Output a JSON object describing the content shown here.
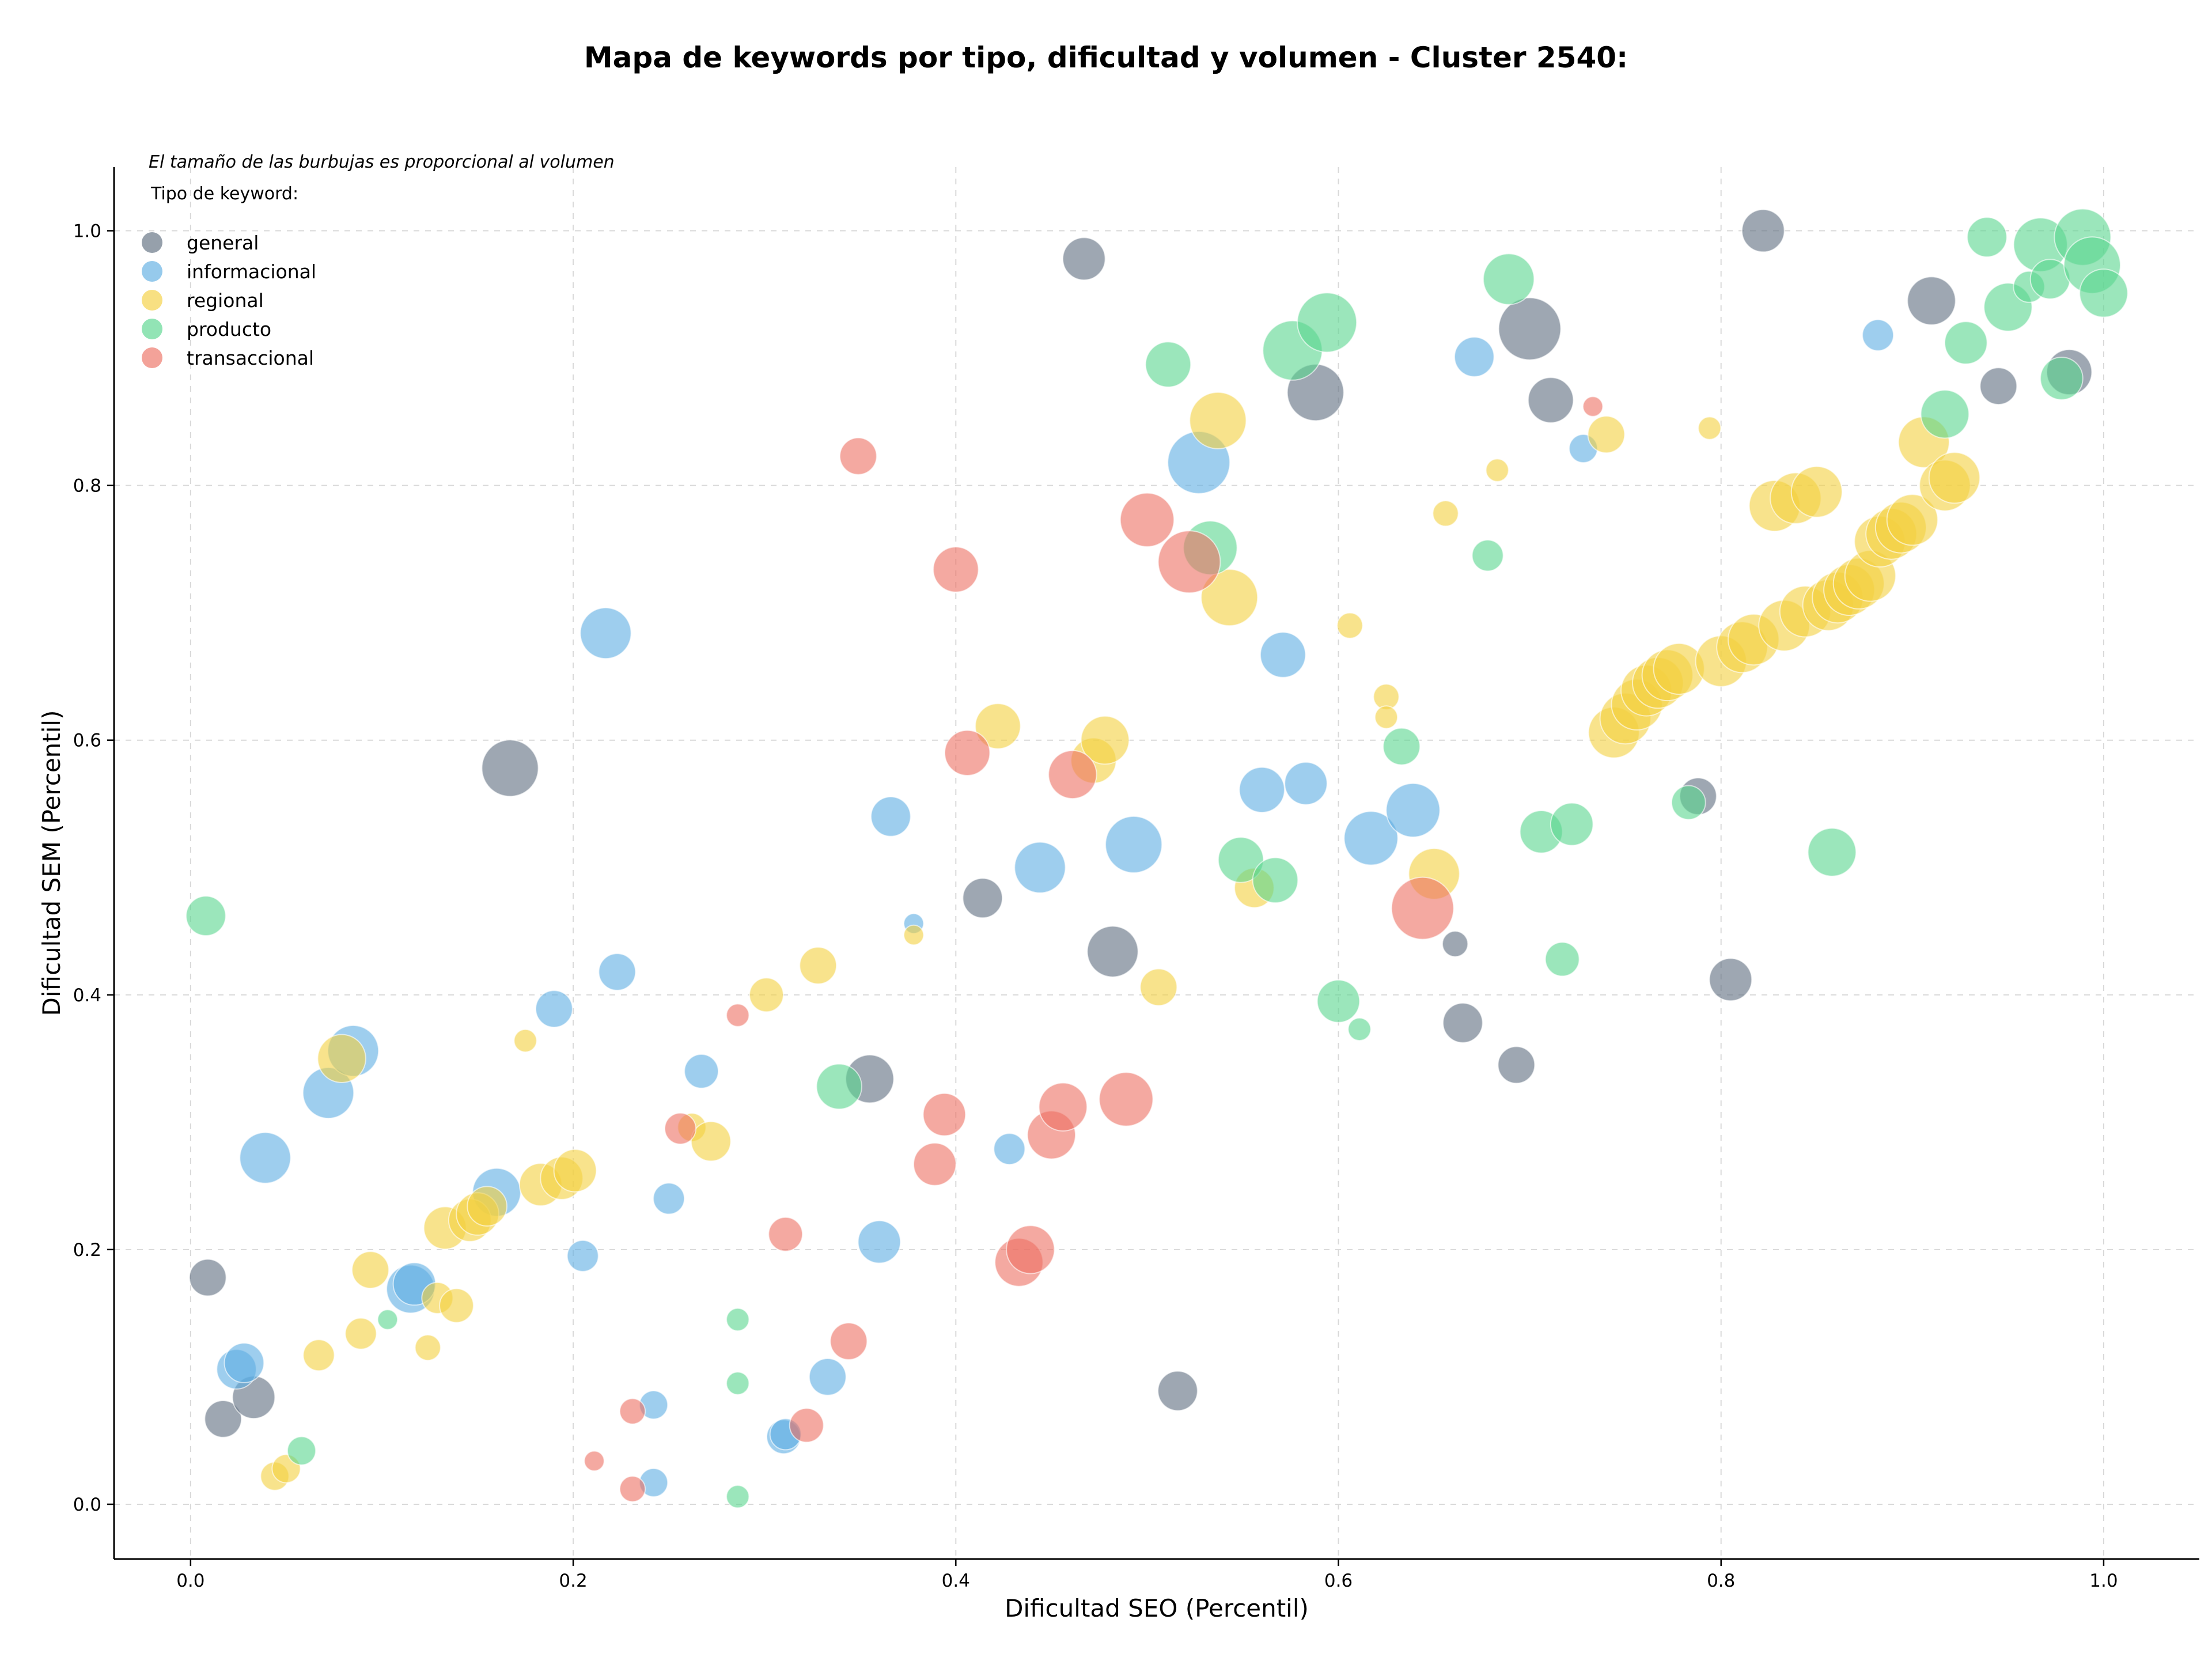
{
  "chart_data": {
    "type": "scatter",
    "title": "Mapa de keywords por tipo, dificultad y volumen - Cluster 2540:",
    "xlabel": "Dificultad SEO (Percentil)",
    "ylabel": "Dificultad SEM (Percentil)",
    "xlim": [
      -0.04,
      1.05
    ],
    "ylim": [
      -0.043,
      1.05
    ],
    "xticks": [
      "0.0",
      "0.2",
      "0.4",
      "0.6",
      "0.8",
      "1.0"
    ],
    "yticks": [
      "0.0",
      "0.2",
      "0.4",
      "0.6",
      "0.8",
      "1.0"
    ],
    "grid": true,
    "note": "El tamaño de las burbujas es proporcional al volumen",
    "legend": {
      "title": "Tipo de keyword:",
      "placement": "top-left"
    },
    "series": [
      {
        "name": "general",
        "color": "#5d6d7e",
        "points": [
          [
            0.009,
            0.178,
            13
          ],
          [
            0.017,
            0.067,
            13
          ],
          [
            0.033,
            0.084,
            15
          ],
          [
            0.167,
            0.578,
            20
          ],
          [
            0.355,
            0.334,
            17
          ],
          [
            0.414,
            0.476,
            14
          ],
          [
            0.467,
            0.978,
            15
          ],
          [
            0.482,
            0.434,
            18
          ],
          [
            0.516,
            0.089,
            14
          ],
          [
            0.588,
            0.873,
            20
          ],
          [
            0.661,
            0.44,
            9
          ],
          [
            0.665,
            0.378,
            14
          ],
          [
            0.693,
            0.345,
            13
          ],
          [
            0.7,
            0.923,
            22
          ],
          [
            0.711,
            0.867,
            16
          ],
          [
            0.788,
            0.556,
            13
          ],
          [
            0.805,
            0.412,
            15
          ],
          [
            0.822,
            1.0,
            15
          ],
          [
            0.91,
            0.945,
            17
          ],
          [
            0.945,
            0.878,
            13
          ],
          [
            0.982,
            0.889,
            16
          ]
        ]
      },
      {
        "name": "informacional",
        "color": "#5dade2",
        "points": [
          [
            0.024,
            0.106,
            14
          ],
          [
            0.028,
            0.111,
            14
          ],
          [
            0.039,
            0.272,
            18
          ],
          [
            0.072,
            0.323,
            18
          ],
          [
            0.085,
            0.356,
            18
          ],
          [
            0.115,
            0.169,
            17
          ],
          [
            0.117,
            0.173,
            15
          ],
          [
            0.16,
            0.245,
            17
          ],
          [
            0.19,
            0.389,
            13
          ],
          [
            0.205,
            0.195,
            11
          ],
          [
            0.217,
            0.684,
            18
          ],
          [
            0.223,
            0.418,
            13
          ],
          [
            0.242,
            0.078,
            10
          ],
          [
            0.242,
            0.017,
            10
          ],
          [
            0.25,
            0.24,
            11
          ],
          [
            0.267,
            0.34,
            12
          ],
          [
            0.31,
            0.053,
            12
          ],
          [
            0.311,
            0.055,
            11
          ],
          [
            0.333,
            0.1,
            13
          ],
          [
            0.36,
            0.206,
            15
          ],
          [
            0.366,
            0.54,
            14
          ],
          [
            0.378,
            0.456,
            7
          ],
          [
            0.428,
            0.279,
            11
          ],
          [
            0.444,
            0.5,
            18
          ],
          [
            0.493,
            0.518,
            20
          ],
          [
            0.527,
            0.818,
            22
          ],
          [
            0.571,
            0.667,
            16
          ],
          [
            0.56,
            0.561,
            16
          ],
          [
            0.583,
            0.566,
            15
          ],
          [
            0.617,
            0.523,
            19
          ],
          [
            0.639,
            0.545,
            19
          ],
          [
            0.671,
            0.901,
            14
          ],
          [
            0.728,
            0.829,
            10
          ],
          [
            0.882,
            0.918,
            11
          ]
        ]
      },
      {
        "name": "regional",
        "color": "#f4d03f",
        "points": [
          [
            0.044,
            0.022,
            10
          ],
          [
            0.05,
            0.028,
            10
          ],
          [
            0.067,
            0.117,
            11
          ],
          [
            0.079,
            0.35,
            17
          ],
          [
            0.089,
            0.134,
            11
          ],
          [
            0.094,
            0.184,
            13
          ],
          [
            0.124,
            0.123,
            9
          ],
          [
            0.129,
            0.162,
            11
          ],
          [
            0.133,
            0.217,
            15
          ],
          [
            0.139,
            0.156,
            12
          ],
          [
            0.146,
            0.223,
            15
          ],
          [
            0.15,
            0.228,
            15
          ],
          [
            0.155,
            0.234,
            14
          ],
          [
            0.175,
            0.364,
            8
          ],
          [
            0.183,
            0.251,
            15
          ],
          [
            0.194,
            0.256,
            15
          ],
          [
            0.201,
            0.262,
            15
          ],
          [
            0.262,
            0.296,
            10
          ],
          [
            0.272,
            0.285,
            14
          ],
          [
            0.301,
            0.4,
            12
          ],
          [
            0.328,
            0.423,
            13
          ],
          [
            0.378,
            0.447,
            7
          ],
          [
            0.422,
            0.611,
            16
          ],
          [
            0.472,
            0.584,
            16
          ],
          [
            0.478,
            0.6,
            17
          ],
          [
            0.506,
            0.406,
            13
          ],
          [
            0.537,
            0.851,
            20
          ],
          [
            0.543,
            0.712,
            20
          ],
          [
            0.556,
            0.484,
            14
          ],
          [
            0.606,
            0.69,
            9
          ],
          [
            0.625,
            0.634,
            9
          ],
          [
            0.625,
            0.618,
            8
          ],
          [
            0.65,
            0.495,
            18
          ],
          [
            0.656,
            0.778,
            9
          ],
          [
            0.683,
            0.812,
            8
          ],
          [
            0.74,
            0.84,
            13
          ],
          [
            0.794,
            0.845,
            8
          ],
          [
            0.744,
            0.606,
            18
          ],
          [
            0.75,
            0.617,
            18
          ],
          [
            0.756,
            0.628,
            18
          ],
          [
            0.761,
            0.639,
            18
          ],
          [
            0.767,
            0.645,
            18
          ],
          [
            0.772,
            0.651,
            18
          ],
          [
            0.778,
            0.656,
            18
          ],
          [
            0.8,
            0.662,
            18
          ],
          [
            0.811,
            0.673,
            18
          ],
          [
            0.817,
            0.679,
            18
          ],
          [
            0.828,
            0.784,
            18
          ],
          [
            0.833,
            0.69,
            18
          ],
          [
            0.839,
            0.79,
            18
          ],
          [
            0.844,
            0.701,
            18
          ],
          [
            0.85,
            0.795,
            18
          ],
          [
            0.856,
            0.706,
            18
          ],
          [
            0.861,
            0.712,
            18
          ],
          [
            0.867,
            0.718,
            18
          ],
          [
            0.872,
            0.723,
            18
          ],
          [
            0.878,
            0.729,
            18
          ],
          [
            0.883,
            0.756,
            18
          ],
          [
            0.889,
            0.762,
            18
          ],
          [
            0.894,
            0.767,
            18
          ],
          [
            0.9,
            0.773,
            18
          ],
          [
            0.906,
            0.834,
            18
          ],
          [
            0.917,
            0.8,
            18
          ],
          [
            0.922,
            0.806,
            18
          ]
        ]
      },
      {
        "name": "producto",
        "color": "#58d68d",
        "points": [
          [
            0.008,
            0.462,
            14
          ],
          [
            0.058,
            0.042,
            10
          ],
          [
            0.103,
            0.145,
            7
          ],
          [
            0.286,
            0.145,
            8
          ],
          [
            0.286,
            0.095,
            8
          ],
          [
            0.286,
            0.006,
            8
          ],
          [
            0.339,
            0.328,
            16
          ],
          [
            0.511,
            0.895,
            16
          ],
          [
            0.533,
            0.751,
            19
          ],
          [
            0.549,
            0.506,
            16
          ],
          [
            0.567,
            0.49,
            16
          ],
          [
            0.576,
            0.906,
            21
          ],
          [
            0.594,
            0.928,
            21
          ],
          [
            0.6,
            0.395,
            15
          ],
          [
            0.611,
            0.373,
            8
          ],
          [
            0.633,
            0.595,
            13
          ],
          [
            0.678,
            0.745,
            11
          ],
          [
            0.689,
            0.962,
            18
          ],
          [
            0.706,
            0.528,
            15
          ],
          [
            0.717,
            0.428,
            12
          ],
          [
            0.722,
            0.534,
            15
          ],
          [
            0.783,
            0.551,
            12
          ],
          [
            0.858,
            0.512,
            17
          ],
          [
            0.917,
            0.856,
            17
          ],
          [
            0.939,
            0.995,
            14
          ],
          [
            0.928,
            0.912,
            15
          ],
          [
            0.95,
            0.94,
            17
          ],
          [
            0.961,
            0.956,
            11
          ],
          [
            0.967,
            0.989,
            19
          ],
          [
            0.972,
            0.962,
            14
          ],
          [
            0.978,
            0.884,
            15
          ],
          [
            0.989,
            0.995,
            20
          ],
          [
            0.994,
            0.973,
            20
          ],
          [
            1.0,
            0.951,
            17
          ]
        ]
      },
      {
        "name": "transaccional",
        "color": "#ec7063",
        "points": [
          [
            0.211,
            0.034,
            7
          ],
          [
            0.231,
            0.073,
            9
          ],
          [
            0.231,
            0.012,
            9
          ],
          [
            0.256,
            0.295,
            11
          ],
          [
            0.286,
            0.384,
            8
          ],
          [
            0.311,
            0.212,
            12
          ],
          [
            0.322,
            0.062,
            12
          ],
          [
            0.344,
            0.128,
            13
          ],
          [
            0.349,
            0.823,
            13
          ],
          [
            0.394,
            0.306,
            15
          ],
          [
            0.389,
            0.267,
            15
          ],
          [
            0.4,
            0.734,
            16
          ],
          [
            0.406,
            0.59,
            16
          ],
          [
            0.433,
            0.19,
            17
          ],
          [
            0.439,
            0.2,
            17
          ],
          [
            0.45,
            0.29,
            17
          ],
          [
            0.456,
            0.312,
            17
          ],
          [
            0.461,
            0.573,
            17
          ],
          [
            0.489,
            0.318,
            19
          ],
          [
            0.5,
            0.773,
            19
          ],
          [
            0.522,
            0.74,
            22
          ],
          [
            0.644,
            0.468,
            22
          ],
          [
            0.733,
            0.862,
            7
          ]
        ]
      }
    ]
  }
}
